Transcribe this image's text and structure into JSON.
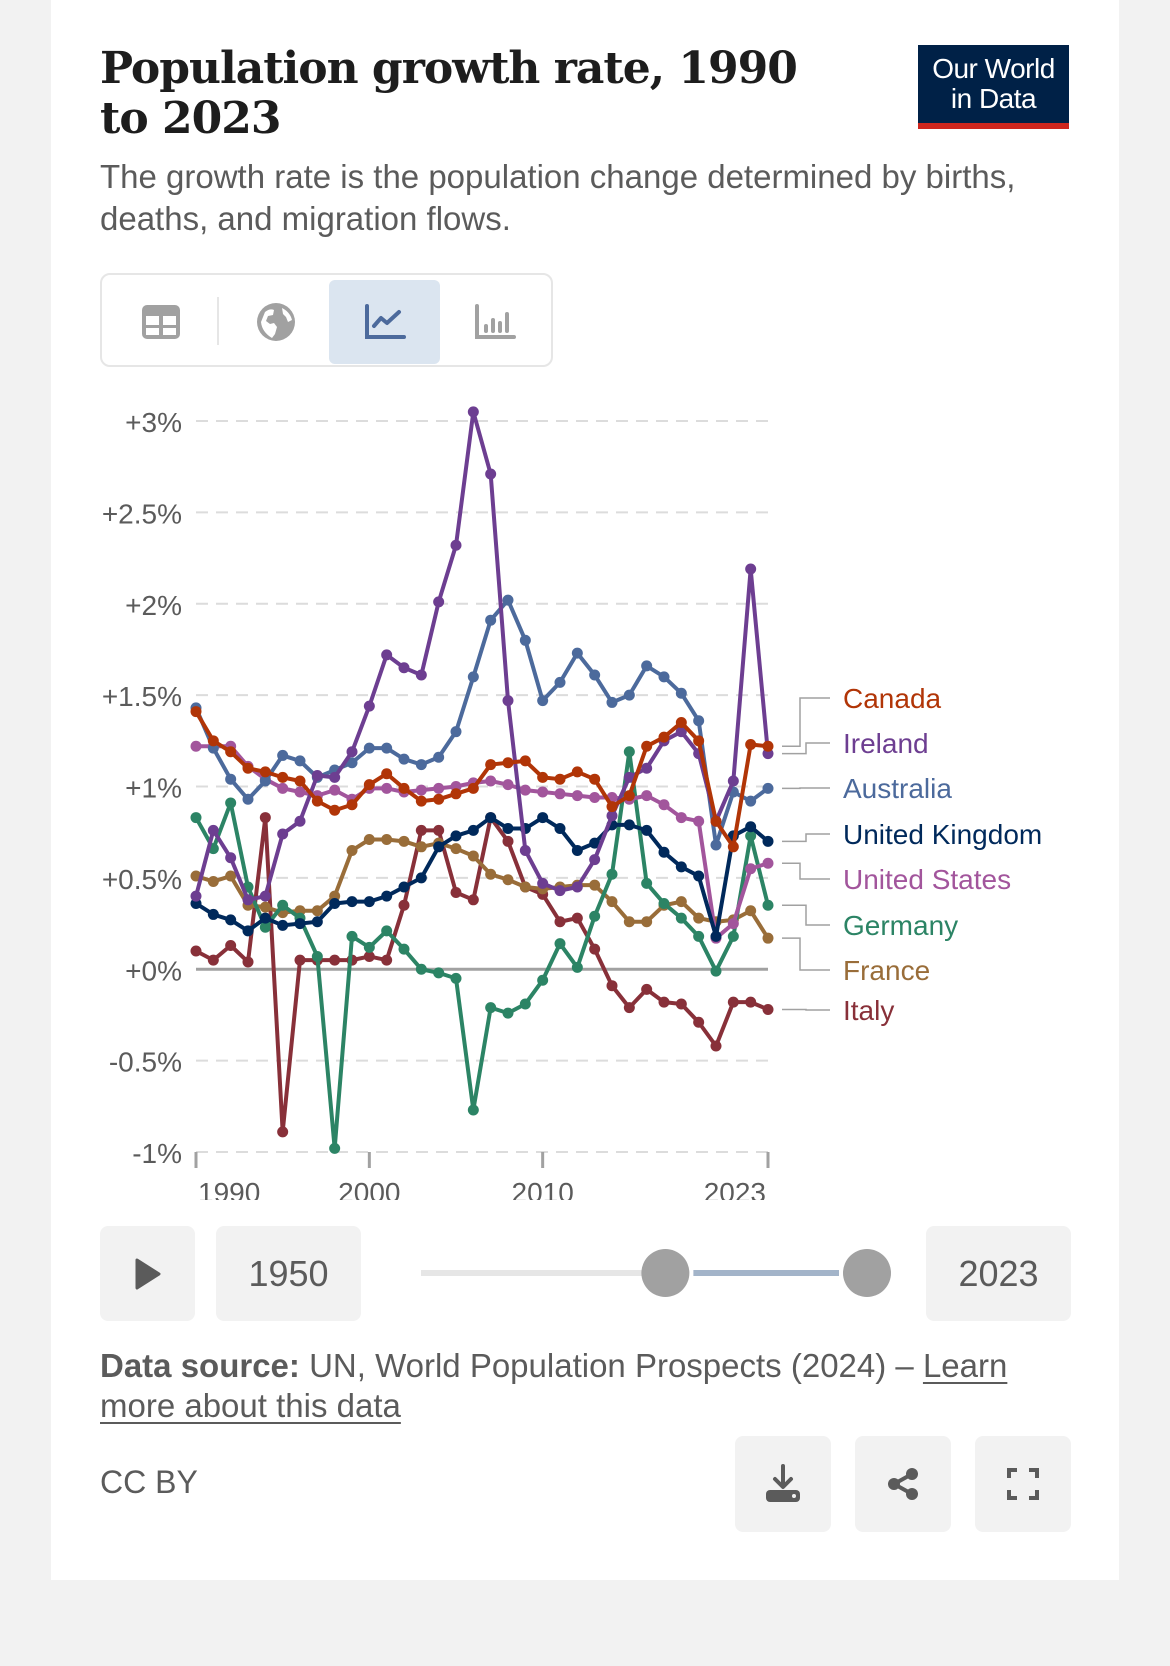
{
  "header": {
    "title": "Population growth rate, 1990 to 2023",
    "subtitle": "The growth rate is the population change determined by births, deaths, and migration flows.",
    "logo_line1": "Our World",
    "logo_line2": "in Data"
  },
  "tabs": [
    {
      "name": "table",
      "icon": "table-icon",
      "active": false
    },
    {
      "name": "map",
      "icon": "globe-icon",
      "active": false
    },
    {
      "name": "chart",
      "icon": "line-chart-icon",
      "active": true
    },
    {
      "name": "bar",
      "icon": "bar-chart-icon",
      "active": false
    }
  ],
  "timeline": {
    "play_icon": "play-icon",
    "start_label": "1950",
    "end_label": "2023",
    "min_year": 1950,
    "max_year": 2023,
    "selected_start": 1990,
    "selected_end": 2023
  },
  "footer": {
    "source_label": "Data source:",
    "source_text": " UN, World Population Prospects (2024) – ",
    "source_link": "Learn more about this data",
    "license": "CC BY",
    "buttons": [
      "download-icon",
      "share-icon",
      "fullscreen-icon"
    ]
  },
  "colors": {
    "Canada": "#b13507",
    "Ireland": "#6d3e91",
    "Australia": "#4c6a9c",
    "United Kingdom": "#00295b",
    "United States": "#a2559c",
    "Germany": "#2c8465",
    "France": "#996d39",
    "Italy": "#883039",
    "accent_tab": "#dbe5f0",
    "logo_bg": "#002147",
    "logo_bar": "#ce261e"
  },
  "chart_data": {
    "type": "line",
    "title": "Population growth rate, 1990 to 2023",
    "xlabel": "",
    "ylabel": "",
    "x_ticks": [
      1990,
      2000,
      2010,
      2023
    ],
    "y_ticks": [
      -1,
      -0.5,
      0,
      0.5,
      1,
      1.5,
      2,
      2.5,
      3
    ],
    "y_tick_labels": [
      "-1%",
      "-0.5%",
      "+0%",
      "+0.5%",
      "+1%",
      "+1.5%",
      "+2%",
      "+2.5%",
      "+3%"
    ],
    "xlim": [
      1990,
      2023
    ],
    "ylim": [
      -1,
      3
    ],
    "grid": "horizontal-dashed",
    "legend": "right (line-end labels)",
    "x": [
      1990,
      1991,
      1992,
      1993,
      1994,
      1995,
      1996,
      1997,
      1998,
      1999,
      2000,
      2001,
      2002,
      2003,
      2004,
      2005,
      2006,
      2007,
      2008,
      2009,
      2010,
      2011,
      2012,
      2013,
      2014,
      2015,
      2016,
      2017,
      2018,
      2019,
      2020,
      2021,
      2022,
      2023
    ],
    "series": [
      {
        "name": "Canada",
        "values": [
          1.41,
          1.25,
          1.19,
          1.1,
          1.08,
          1.05,
          1.03,
          0.92,
          0.87,
          0.9,
          1.01,
          1.07,
          0.99,
          0.92,
          0.93,
          0.96,
          0.99,
          1.12,
          1.13,
          1.14,
          1.05,
          1.04,
          1.08,
          1.04,
          0.89,
          0.95,
          1.22,
          1.27,
          1.35,
          1.25,
          0.81,
          0.67,
          1.23,
          1.22
        ]
      },
      {
        "name": "Ireland",
        "values": [
          0.4,
          0.76,
          0.61,
          0.38,
          0.4,
          0.74,
          0.81,
          1.06,
          1.05,
          1.19,
          1.44,
          1.72,
          1.65,
          1.61,
          2.01,
          2.32,
          3.05,
          2.71,
          1.47,
          0.65,
          0.47,
          0.43,
          0.45,
          0.6,
          0.84,
          1.05,
          1.1,
          1.25,
          1.3,
          1.18,
          0.81,
          1.03,
          2.19,
          1.18
        ]
      },
      {
        "name": "Australia",
        "values": [
          1.43,
          1.21,
          1.04,
          0.93,
          1.03,
          1.17,
          1.14,
          1.05,
          1.09,
          1.13,
          1.21,
          1.21,
          1.15,
          1.12,
          1.16,
          1.3,
          1.6,
          1.91,
          2.02,
          1.8,
          1.47,
          1.57,
          1.73,
          1.61,
          1.46,
          1.5,
          1.66,
          1.6,
          1.51,
          1.36,
          0.68,
          0.97,
          0.92,
          0.99
        ]
      },
      {
        "name": "United Kingdom",
        "values": [
          0.36,
          0.3,
          0.27,
          0.21,
          0.28,
          0.24,
          0.25,
          0.26,
          0.36,
          0.37,
          0.37,
          0.4,
          0.45,
          0.5,
          0.67,
          0.73,
          0.76,
          0.83,
          0.77,
          0.77,
          0.83,
          0.77,
          0.65,
          0.69,
          0.79,
          0.79,
          0.76,
          0.64,
          0.56,
          0.51,
          0.18,
          0.73,
          0.78,
          0.7
        ]
      },
      {
        "name": "United States",
        "values": [
          1.22,
          1.22,
          1.22,
          1.11,
          1.04,
          0.99,
          0.97,
          0.95,
          0.98,
          0.93,
          0.99,
          0.99,
          0.97,
          0.98,
          0.99,
          1.0,
          1.02,
          1.03,
          1.01,
          0.98,
          0.97,
          0.96,
          0.95,
          0.94,
          0.94,
          0.93,
          0.95,
          0.9,
          0.83,
          0.81,
          0.17,
          0.25,
          0.55,
          0.58
        ]
      },
      {
        "name": "Germany",
        "values": [
          0.83,
          0.66,
          0.91,
          0.45,
          0.23,
          0.35,
          0.28,
          0.07,
          -0.98,
          0.18,
          0.12,
          0.21,
          0.11,
          0.0,
          -0.02,
          -0.05,
          -0.77,
          -0.21,
          -0.24,
          -0.19,
          -0.06,
          0.14,
          0.01,
          0.29,
          0.52,
          1.19,
          0.47,
          0.36,
          0.28,
          0.18,
          -0.01,
          0.18,
          0.73,
          0.35
        ]
      },
      {
        "name": "France",
        "values": [
          0.51,
          0.48,
          0.51,
          0.35,
          0.34,
          0.31,
          0.32,
          0.32,
          0.4,
          0.65,
          0.71,
          0.71,
          0.7,
          0.67,
          0.69,
          0.66,
          0.62,
          0.52,
          0.49,
          0.45,
          0.44,
          0.45,
          0.46,
          0.46,
          0.37,
          0.26,
          0.26,
          0.35,
          0.37,
          0.28,
          0.26,
          0.27,
          0.32,
          0.17
        ]
      },
      {
        "name": "Italy",
        "values": [
          0.1,
          0.05,
          0.13,
          0.04,
          0.83,
          -0.89,
          0.05,
          0.05,
          0.05,
          0.05,
          0.07,
          0.05,
          0.35,
          0.76,
          0.76,
          0.42,
          0.38,
          0.83,
          0.7,
          0.45,
          0.41,
          0.26,
          0.28,
          0.11,
          -0.09,
          -0.21,
          -0.11,
          -0.18,
          -0.19,
          -0.29,
          -0.42,
          -0.18,
          -0.18,
          -0.22
        ]
      }
    ]
  }
}
